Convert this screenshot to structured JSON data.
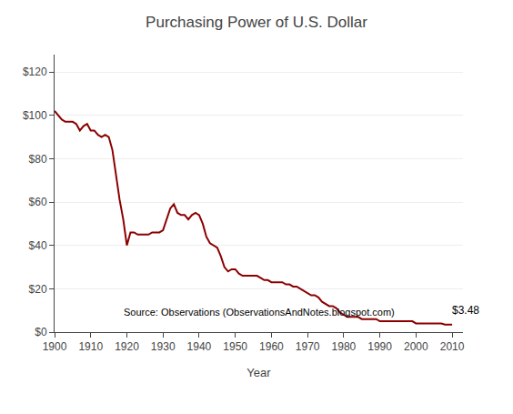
{
  "chart_data": {
    "type": "line",
    "title": "Purchasing Power of U.S. Dollar",
    "xlabel": "Year",
    "source": "Source: Observations (ObservationsAndNotes.blogspot.com)",
    "annotations": [
      {
        "text": "$3.48",
        "x": 2009.5,
        "y": 10
      }
    ],
    "color": "#8B0000",
    "grid": true,
    "xlim": [
      1900,
      2013
    ],
    "ylim": [
      0,
      128
    ],
    "xticks": [
      1900,
      1910,
      1920,
      1930,
      1940,
      1950,
      1960,
      1970,
      1980,
      1990,
      2000,
      2010
    ],
    "yticks": [
      {
        "value": 0,
        "label": "$0"
      },
      {
        "value": 20,
        "label": "$20"
      },
      {
        "value": 40,
        "label": "$40"
      },
      {
        "value": 60,
        "label": "$60"
      },
      {
        "value": 80,
        "label": "$80"
      },
      {
        "value": 100,
        "label": "$100"
      },
      {
        "value": 120,
        "label": "$120"
      }
    ],
    "x": [
      1900,
      1901,
      1902,
      1903,
      1904,
      1905,
      1906,
      1907,
      1908,
      1909,
      1910,
      1911,
      1912,
      1913,
      1914,
      1915,
      1916,
      1917,
      1918,
      1919,
      1920,
      1921,
      1922,
      1923,
      1924,
      1925,
      1926,
      1927,
      1928,
      1929,
      1930,
      1931,
      1932,
      1933,
      1934,
      1935,
      1936,
      1937,
      1938,
      1939,
      1940,
      1941,
      1942,
      1943,
      1944,
      1945,
      1946,
      1947,
      1948,
      1949,
      1950,
      1951,
      1952,
      1953,
      1954,
      1955,
      1956,
      1957,
      1958,
      1959,
      1960,
      1961,
      1962,
      1963,
      1964,
      1965,
      1966,
      1967,
      1968,
      1969,
      1970,
      1971,
      1972,
      1973,
      1974,
      1975,
      1976,
      1977,
      1978,
      1979,
      1980,
      1981,
      1982,
      1983,
      1984,
      1985,
      1986,
      1987,
      1988,
      1989,
      1990,
      1991,
      1992,
      1993,
      1994,
      1995,
      1996,
      1997,
      1998,
      1999,
      2000,
      2001,
      2002,
      2003,
      2004,
      2005,
      2006,
      2007,
      2008,
      2009,
      2010
    ],
    "values": [
      102,
      100,
      98,
      97,
      97,
      97,
      96,
      93,
      95,
      96,
      93,
      93,
      91,
      90,
      91,
      90,
      84,
      72,
      61,
      52,
      40,
      46,
      46,
      45,
      45,
      45,
      45,
      46,
      46,
      46,
      47,
      52,
      57,
      59,
      55,
      54,
      54,
      52,
      54,
      55,
      54,
      50,
      44,
      41,
      40,
      39,
      35,
      30,
      28,
      29,
      29,
      27,
      26,
      26,
      26,
      26,
      26,
      25,
      24,
      24,
      23,
      23,
      23,
      23,
      22,
      22,
      21,
      21,
      20,
      19,
      18,
      17,
      17,
      16,
      14,
      13,
      12,
      12,
      11,
      9,
      8,
      7,
      7,
      7,
      7,
      6,
      6,
      6,
      6,
      6,
      5,
      5,
      5,
      5,
      5,
      5,
      5,
      5,
      5,
      5,
      4,
      4,
      4,
      4,
      4,
      4,
      4,
      4,
      3.5,
      3.5,
      3.48
    ]
  }
}
